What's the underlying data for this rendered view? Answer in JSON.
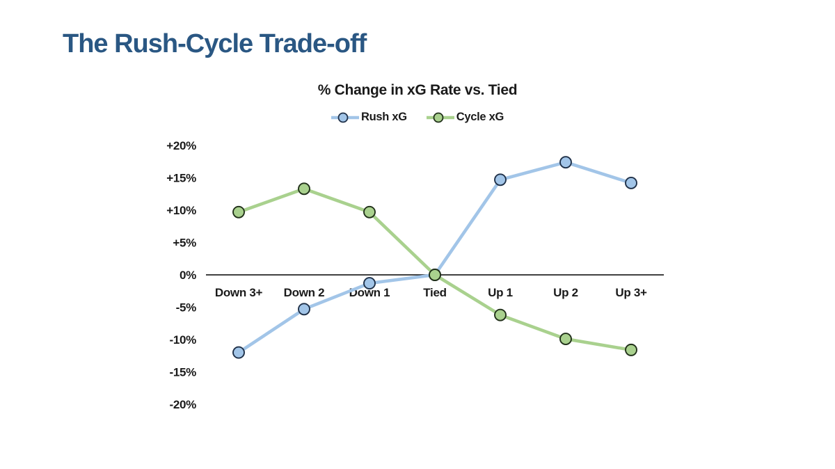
{
  "page": {
    "title": "The Rush-Cycle Trade-off",
    "title_color": "#2A5783",
    "background_color": "#FFFFFF"
  },
  "chart_data": {
    "type": "line",
    "title": "% Change in xG Rate vs. Tied",
    "title_color": "#1A1A1A",
    "categories": [
      "Down 3+",
      "Down 2",
      "Down 1",
      "Tied",
      "Up 1",
      "Up 2",
      "Up 3+"
    ],
    "series": [
      {
        "name": "Rush xG",
        "color": "#A2C5E8",
        "marker_border": "#1F3048",
        "values": [
          -12.0,
          -5.3,
          -1.3,
          0.0,
          14.7,
          17.4,
          14.2
        ]
      },
      {
        "name": "Cycle xG",
        "color": "#A9D18E",
        "marker_border": "#21301A",
        "values": [
          9.7,
          13.3,
          9.7,
          0.0,
          -6.2,
          -9.9,
          -11.6
        ]
      }
    ],
    "ylim": [
      -20,
      20
    ],
    "ytick_step": 5,
    "yticks": [
      {
        "v": 20,
        "label": "+20%"
      },
      {
        "v": 15,
        "label": "+15%"
      },
      {
        "v": 10,
        "label": "+10%"
      },
      {
        "v": 5,
        "label": "+5%"
      },
      {
        "v": 0,
        "label": "0%"
      },
      {
        "v": -5,
        "label": "-5%"
      },
      {
        "v": -10,
        "label": "-10%"
      },
      {
        "v": -15,
        "label": "-15%"
      },
      {
        "v": -20,
        "label": "-20%"
      }
    ],
    "grid": false,
    "legend_position": "top",
    "axis_color": "#000000",
    "tick_label_color": "#1A1A1A"
  }
}
